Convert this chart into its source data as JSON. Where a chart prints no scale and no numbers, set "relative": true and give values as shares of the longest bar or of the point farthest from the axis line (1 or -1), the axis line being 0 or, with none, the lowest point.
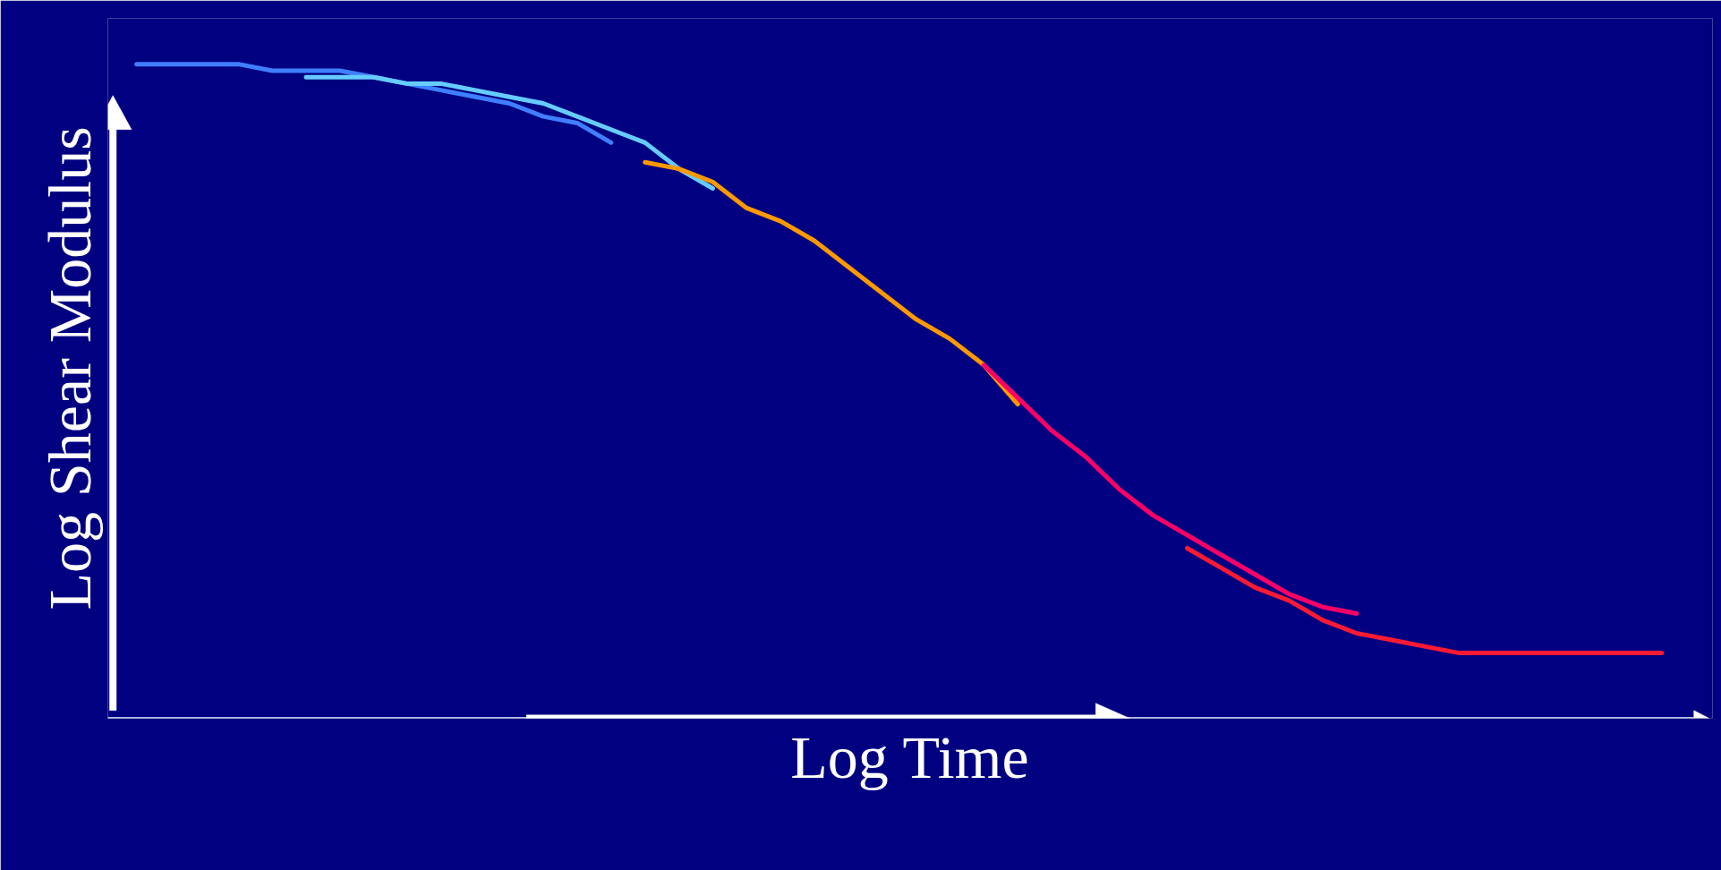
{
  "chart_data": {
    "type": "line",
    "relative": true,
    "xlabel": "Log Time",
    "ylabel": "Log Shear Modulus",
    "line_style": "solid",
    "marker": "none",
    "categories": [
      null,
      null,
      null,
      null,
      null,
      null,
      null,
      null,
      null,
      null,
      null,
      null,
      null,
      null,
      null,
      null,
      null,
      null,
      null,
      null,
      null,
      null,
      null,
      null,
      null,
      null,
      null,
      null,
      null,
      null,
      null,
      null,
      null,
      null,
      null,
      null,
      null,
      null,
      null,
      null,
      null,
      null,
      null,
      null,
      null,
      null
    ],
    "series": [
      {
        "color": "#3f7fff",
        "values": [
          1.0,
          1.0,
          1.0,
          1.0,
          0.99,
          0.99,
          0.99,
          0.98,
          0.97,
          0.96,
          0.95,
          0.94,
          0.92,
          0.91,
          0.88,
          null,
          null,
          null,
          null,
          null,
          null,
          null,
          null,
          null,
          null,
          null,
          null,
          null,
          null,
          null,
          null,
          null,
          null,
          null,
          null,
          null,
          null,
          null,
          null,
          null,
          null,
          null,
          null,
          null,
          null,
          null
        ]
      },
      {
        "color": "#66ccff",
        "values": [
          null,
          null,
          null,
          null,
          null,
          0.98,
          0.98,
          0.98,
          0.97,
          0.97,
          0.96,
          0.95,
          0.94,
          0.92,
          0.9,
          0.88,
          0.84,
          0.81,
          null,
          null,
          null,
          null,
          null,
          null,
          null,
          null,
          null,
          null,
          null,
          null,
          null,
          null,
          null,
          null,
          null,
          null,
          null,
          null,
          null,
          null,
          null,
          null,
          null,
          null,
          null,
          null
        ]
      },
      {
        "color": "#ff9900",
        "values": [
          null,
          null,
          null,
          null,
          null,
          null,
          null,
          null,
          null,
          null,
          null,
          null,
          null,
          null,
          null,
          0.85,
          0.84,
          0.82,
          0.78,
          0.76,
          0.73,
          0.69,
          0.65,
          0.61,
          0.58,
          0.54,
          0.48,
          null,
          null,
          null,
          null,
          null,
          null,
          null,
          null,
          null,
          null,
          null,
          null,
          null,
          null,
          null,
          null,
          null,
          null,
          null
        ]
      },
      {
        "color": "#ff0066",
        "values": [
          null,
          null,
          null,
          null,
          null,
          null,
          null,
          null,
          null,
          null,
          null,
          null,
          null,
          null,
          null,
          null,
          null,
          null,
          null,
          null,
          null,
          null,
          null,
          null,
          null,
          0.54,
          0.49,
          0.44,
          0.4,
          0.35,
          0.31,
          0.28,
          0.25,
          0.22,
          0.19,
          0.17,
          0.16,
          null,
          null,
          null,
          null,
          null,
          null,
          null,
          null,
          null
        ]
      },
      {
        "color": "#ff1a33",
        "values": [
          null,
          null,
          null,
          null,
          null,
          null,
          null,
          null,
          null,
          null,
          null,
          null,
          null,
          null,
          null,
          null,
          null,
          null,
          null,
          null,
          null,
          null,
          null,
          null,
          null,
          null,
          null,
          null,
          null,
          null,
          null,
          0.26,
          0.23,
          0.2,
          0.18,
          0.15,
          0.13,
          0.12,
          0.11,
          0.1,
          0.1,
          0.1,
          0.1,
          0.1,
          0.1,
          0.1
        ]
      }
    ]
  }
}
